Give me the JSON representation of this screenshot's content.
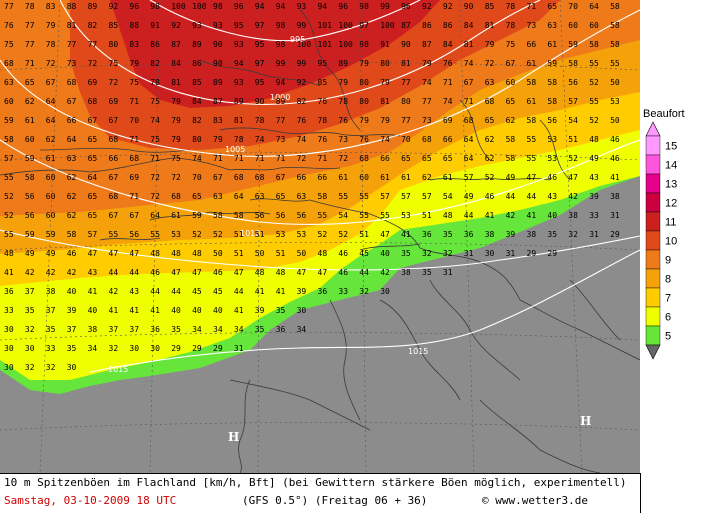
{
  "legend": {
    "title": "Beaufort",
    "levels": [
      {
        "label": "15",
        "color": "#ff99ff"
      },
      {
        "label": "14",
        "color": "#ff55dd"
      },
      {
        "label": "13",
        "color": "#e6008a"
      },
      {
        "label": "12",
        "color": "#cc0040"
      },
      {
        "label": "11",
        "color": "#cc2020"
      },
      {
        "label": "10",
        "color": "#e04a1a"
      },
      {
        "label": "9",
        "color": "#ef7a1a"
      },
      {
        "label": "8",
        "color": "#f5a20a"
      },
      {
        "label": "7",
        "color": "#ffcc00"
      },
      {
        "label": "6",
        "color": "#f0ff00"
      },
      {
        "label": "5",
        "color": "#66e63a"
      }
    ]
  },
  "map": {
    "isobars": [
      "995",
      "1000",
      "1005",
      "1010",
      "1015",
      "1015"
    ],
    "pressure_markers": [
      "H",
      "H"
    ],
    "value_rows": [
      "77 78 83 88 89 92 96 98 100 100 98 96 94 94 93 94 96 98 99 96 92 92 90 85 78 71 65 70 64 58",
      "76 77 79 81 82 85 88 91 92 93 93 95 97 98 99 101 100 97 100 87 86 86 84 81 78 73 63 60 60 58",
      "75 77 78 77 77 80 83 86 87 89 90 93 95 98 100 101 100 98 91 90 87 84 81 79 75 66 61 59 58 58",
      "68 71 72 73 72 75 79 82 84 86 90 94 97 99 99 95 89 79 80 81 79 76 74 72 67 61 59 58 55 55",
      "63 65 67 68 69 72 75 78 81 85 89 93 95 94 92 85 79 80 79 77 74 71 67 63 60 58 58 56 52 50",
      "60 62 64 67 68 69 71 75 79 84 87 89 90 89 82 76 78 80 81 80 77 74 71 68 65 61 58 57 55 53",
      "59 61 64 66 67 67 70 74 79 82 83 81 78 77 76 78 76 79 79 77 73 69 68 65 62 58 56 54 52 50",
      "58 60 62 64 65 68 71 75 79 80 79 78 74 73 74 76 73 76 74 70 68 66 64 62 58 55 53 51 48 46",
      "57 59 61 63 65 66 68 71 75 74 71 71 71 71 72 71 72 68 66 65 65 65 64 62 58 55 53 52 49 46",
      "55 58 60 62 64 67 69 72 72 70 67 68 68 67 66 66 61 60 61 61 62 61 57 52 49 47 46 47 43 41",
      "52 56 60 62 65 68 71 72 68 65 63 64 63 65 63 58 55 55 57 57 57 54 49 46 44 44 43 42 39 38",
      "52 56 60 62 65 67 67 64 61 59 58 58 56 56 56 55 54 55 55 53 51 48 44 41 42 41 40 38 33 31",
      "55 59 59 58 57 55 56 55 53 52 52 51 51 53 53 52 52 51 47 41 36 35 36 38 39 38 35 32 31 29",
      "48 49 49 46 47 47 47 48 48 48 50 51 50 51 50 48 46 45 40 35 32 32 31 30 31 29 29",
      "41 42 42 42 43 44 44 46 47 47 46 47 48 48 47 47 46 44 42 38 35 31",
      "36 37 38 40 41 42 43 44 44 45 45 44 41 41 39 36 33 32 30",
      "33 35 37 39 40 41 41 41 40 40 40 41 39 35 30",
      "30 32 35 37 38 37 37 36 35 34 34 34 35 36 34",
      "30 30 33 35 34 32 30 30 29 29 29 31",
      "30 32 32 30"
    ]
  },
  "footer": {
    "description": "10 m Spitzenböen im Flachland [km/h, Bft] (bei Gewittern stärkere Böen möglich, experimentell)",
    "date": "Samstag, 03-10-2009  18 UTC",
    "model": "(GFS 0.5°)  (Freitag 06 + 36)",
    "credit": "© www.wetter3.de"
  }
}
